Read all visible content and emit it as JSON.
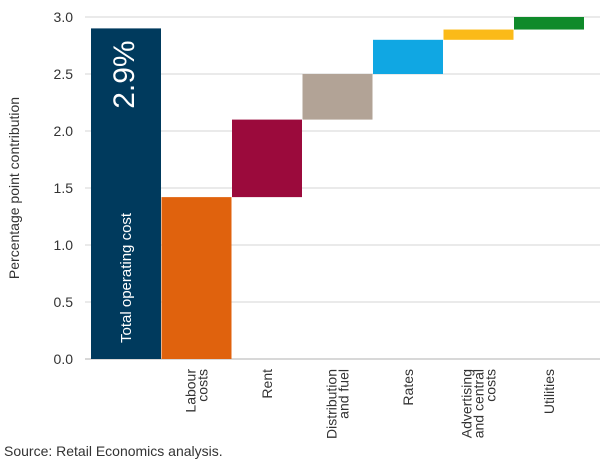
{
  "chart_data": {
    "type": "bar",
    "subtype": "waterfall",
    "ylabel": "Percentage point contribution",
    "ylim": [
      0,
      3.0
    ],
    "yticks": [
      "0.0",
      "0.5",
      "1.0",
      "1.5",
      "2.0",
      "2.5",
      "3.0"
    ],
    "grid": "horizontal",
    "total": {
      "category": "",
      "value": 2.9,
      "value_label": "2.9%",
      "inner_label": "Total operating cost",
      "color": "#003a5d"
    },
    "categories": [
      [
        "Labour",
        "costs"
      ],
      [
        "Rent"
      ],
      [
        "Distribution",
        "and fuel"
      ],
      [
        "Rates"
      ],
      [
        "Advertising",
        "and central",
        "costs"
      ],
      [
        "Utilities"
      ]
    ],
    "values": [
      1.42,
      0.68,
      0.4,
      0.3,
      0.09,
      0.11
    ],
    "colors": [
      "#e0620d",
      "#9b0a3c",
      "#b2a396",
      "#10a7e3",
      "#fbba18",
      "#0f8a2a"
    ]
  },
  "source": "Source: Retail Economics analysis."
}
